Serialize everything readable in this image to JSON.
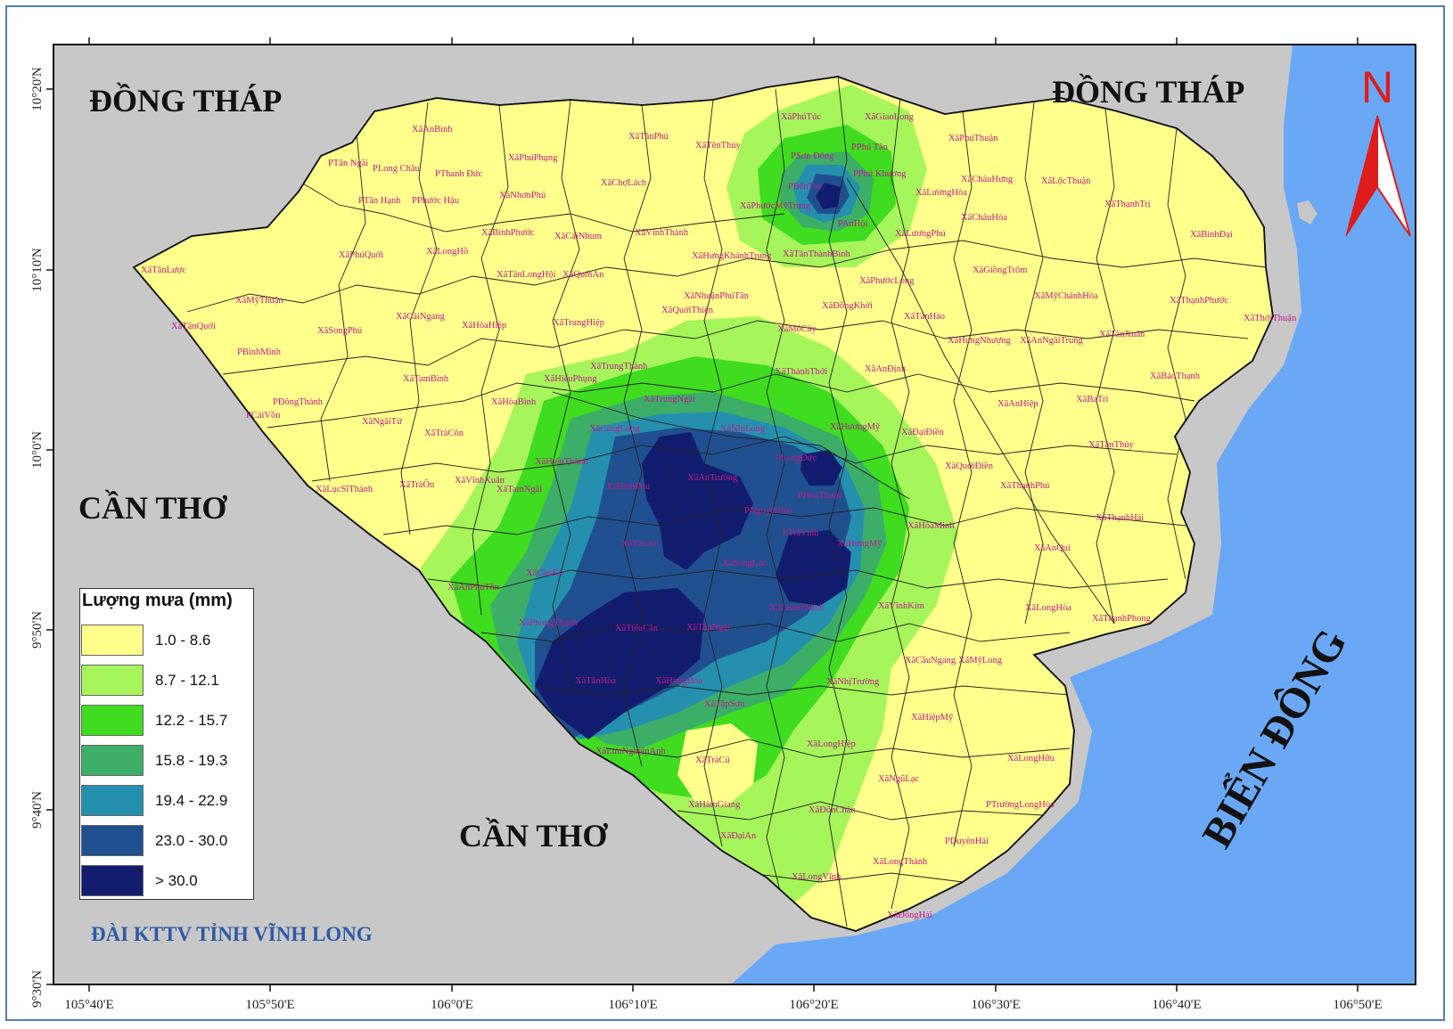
{
  "neighbors": {
    "dong_thap_west": "ĐỒNG THÁP",
    "dong_thap_east": "ĐỒNG THÁP",
    "can_tho_west": "CẦN THƠ",
    "can_tho_south": "CẦN THƠ",
    "sea": "BIỂN ĐÔNG"
  },
  "north_arrow": {
    "letter": "N",
    "icon": "north-arrow-icon",
    "color": "#e01b1b"
  },
  "legend": {
    "title": "Lượng mưa (mm)",
    "classes": [
      {
        "range": "1.0 - 8.6",
        "color": "#ffff8c"
      },
      {
        "range": "8.7 - 12.1",
        "color": "#a6f55a"
      },
      {
        "range": "12.2 - 15.7",
        "color": "#3fdc1f"
      },
      {
        "range": "15.8 - 19.3",
        "color": "#3cae68"
      },
      {
        "range": "19.4 - 22.9",
        "color": "#2490ad"
      },
      {
        "range": "23.0 - 30.0",
        "color": "#204f8f"
      },
      {
        "range": "> 30.0",
        "color": "#121c6e"
      }
    ]
  },
  "agency": "ĐÀI KTTV TỈNH VĨNH LONG",
  "axes": {
    "x_ticks": [
      "105°40'E",
      "105°50'E",
      "106°0'E",
      "106°10'E",
      "106°20'E",
      "106°30'E",
      "106°40'E",
      "106°50'E"
    ],
    "y_ticks": [
      "10°20'N",
      "10°10'N",
      "10°0'N",
      "9°50'N",
      "9°40'N",
      "9°30'N"
    ]
  },
  "colors": {
    "sea": "#6aa8f5",
    "outside_land": "#c8c8c8",
    "commune_label": "#c0188f"
  },
  "communes": [
    "XãAnBình",
    "XãPhúPhụng",
    "XãTânPhú",
    "XãTênThủy",
    "XãPhúTúc",
    "XãGiaoLong",
    "XãPhúThuận",
    "PTân Ngãi",
    "PLong Châu",
    "PThanh Đức",
    "XãNhơnPhú",
    "XãChợLách",
    "PPhú Tân",
    "PSơn Đông",
    "PPhú Khương",
    "XãChâuHưng",
    "XãLộcThuận",
    "PTân Hạnh",
    "PPhước Hậu",
    "XãBìnhPhước",
    "XãCáiNhum",
    "XãVĩnhThành",
    "PBếnTre",
    "XãPhướcMỹTrung",
    "PAnHội",
    "XãLươngHòa",
    "XãThạnhTrị",
    "XãBìnhĐại",
    "XãChâuHòa",
    "XãLươngPhú",
    "XãLongHồ",
    "XãPhúQuới",
    "XãTânLongHội",
    "XãQuớiAn",
    "XãHưngKhánhTrung",
    "XãTânThànhBình",
    "XãTânLược",
    "XãGiồngTrôm",
    "XãPhướcLong",
    "XãMỹThuận",
    "XãCáiNgang",
    "XãNhuậnPhúTân",
    "XãQuớiThiện",
    "XãĐồngKhởi",
    "XãMỹChánhHòa",
    "XãThạnhPhước",
    "XãTânQuới",
    "XãSongPhú",
    "XãHòaHiệp",
    "XãTrungHiệp",
    "XãMỏCày",
    "XãTânHào",
    "XãThớiThuận",
    "PBìnhMinh",
    "XãHưngNhượng",
    "XãAnNgãiTrung",
    "XãTânXuân",
    "XãTamBình",
    "XãHiếuPhụng",
    "XãTrungThành",
    "XãThànhThới",
    "XãAnĐịnh",
    "XãBảoThạnh",
    "PĐôngThành",
    "XãHòaBình",
    "XãTrungNgãi",
    "XãAnHiệp",
    "XãBaTri",
    "PCáiVồn",
    "XãNgãiTứ",
    "XãTràCôn",
    "XãCàngLong",
    "XãNhịLong",
    "XãHươngMỹ",
    "XãĐạiĐiền",
    "XãTânThủy",
    "XãHiếuThành",
    "PLongĐức",
    "XãQuớiĐiền",
    "XãLụcSĩThành",
    "XãVĩnhXuân",
    "XãBìnhPhú",
    "XãAnTrường",
    "PHòaThuận",
    "XãThạnhPhú",
    "XãTràÔn",
    "XãTamNgãi",
    "PNguyệtHóa",
    "PTràVinh",
    "XãHòaMinh",
    "XãThạnhHải",
    "XãTânAn",
    "XãHưngMỹ",
    "XãSongLộc",
    "XãAnQuí",
    "XãCầuKè",
    "XãAnPhúTân",
    "XãChâuThành",
    "XãVĩnhKim",
    "XãLongHòa",
    "XãThạnhPhong",
    "XãPhongThạnh",
    "XãTiểuCần",
    "XãTậpNgãi",
    "XãCầuNgang",
    "XãMỹLong",
    "XãTânHòa",
    "XãHùngHòa",
    "XãNhịTrường",
    "XãTậpSơn",
    "XãHiệpMỹ",
    "XãLongHiệp",
    "XãLưuNghiệpAnh",
    "XãTràCú",
    "XãLongHữu",
    "XãNgũLạc",
    "XãHàmGiang",
    "XãĐônChâu",
    "PTrườngLongHòa",
    "XãĐạiAn",
    "PDuyênHải",
    "XãLongThành",
    "XãLongVĩnh",
    "XãĐôngHải"
  ]
}
